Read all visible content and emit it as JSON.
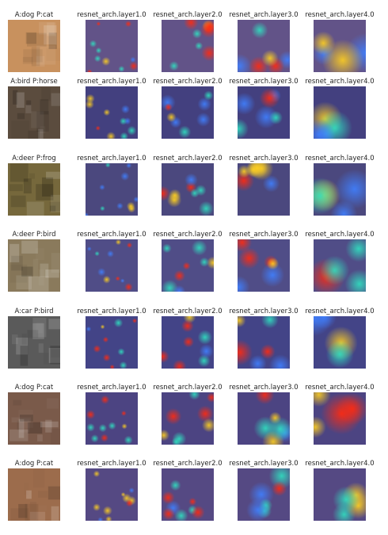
{
  "rows": [
    {
      "title": "A:dog P:cat",
      "layers": [
        "resnet_arch.layer1.0",
        "resnet_arch.layer2.0",
        "resnet_arch.layer3.0",
        "resnet_arch.layer4.0"
      ]
    },
    {
      "title": "A:bird P:horse",
      "layers": [
        "resnet_arch.layer1.0",
        "resnet_arch.layer2.0",
        "resnet_arch.layer3.0",
        "resnet_arch.layer4.0"
      ]
    },
    {
      "title": "A:deer P:frog",
      "layers": [
        "resnet_arch.layer1.0",
        "resnet_arch.layer2.0",
        "resnet_arch.layer3.0",
        "resnet_arch.layer4.0"
      ]
    },
    {
      "title": "A:deer P:bird",
      "layers": [
        "resnet_arch.layer1.0",
        "resnet_arch.layer2.0",
        "resnet_arch.layer3.0",
        "resnet_arch.layer4.0"
      ]
    },
    {
      "title": "A:car P:bird",
      "layers": [
        "resnet_arch.layer1.0",
        "resnet_arch.layer2.0",
        "resnet_arch.layer3.0",
        "resnet_arch.layer4.0"
      ]
    },
    {
      "title": "A:dog P:cat",
      "layers": [
        "resnet_arch.layer1.0",
        "resnet_arch.layer2.0",
        "resnet_arch.layer3.0",
        "resnet_arch.layer4.0"
      ]
    },
    {
      "title": "A:dog P:cat",
      "layers": [
        "resnet_arch.layer1.0",
        "resnet_arch.layer2.0",
        "resnet_arch.layer3.0",
        "resnet_arch.layer4.0"
      ]
    }
  ]
}
